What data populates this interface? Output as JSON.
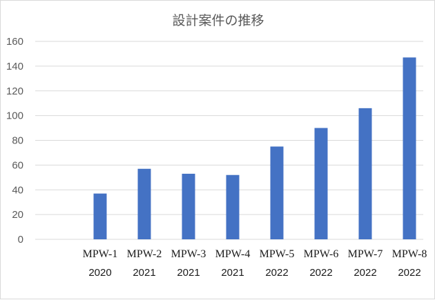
{
  "chart_data": {
    "type": "bar",
    "title": "設計案件の推移",
    "categories": [
      "MPW-1",
      "MPW-2",
      "MPW-3",
      "MPW-4",
      "MPW-5",
      "MPW-6",
      "MPW-7",
      "MPW-8"
    ],
    "years": [
      "2020",
      "2021",
      "2021",
      "2021",
      "2022",
      "2022",
      "2022",
      "2022"
    ],
    "values": [
      37,
      57,
      53,
      52,
      75,
      90,
      106,
      147
    ],
    "ylim": [
      0,
      160
    ],
    "yticks": [
      0,
      20,
      40,
      60,
      80,
      100,
      120,
      140,
      160
    ],
    "grid": true,
    "legend": "none",
    "xlabel": "",
    "ylabel": "",
    "bar_color": "#4472c4"
  }
}
